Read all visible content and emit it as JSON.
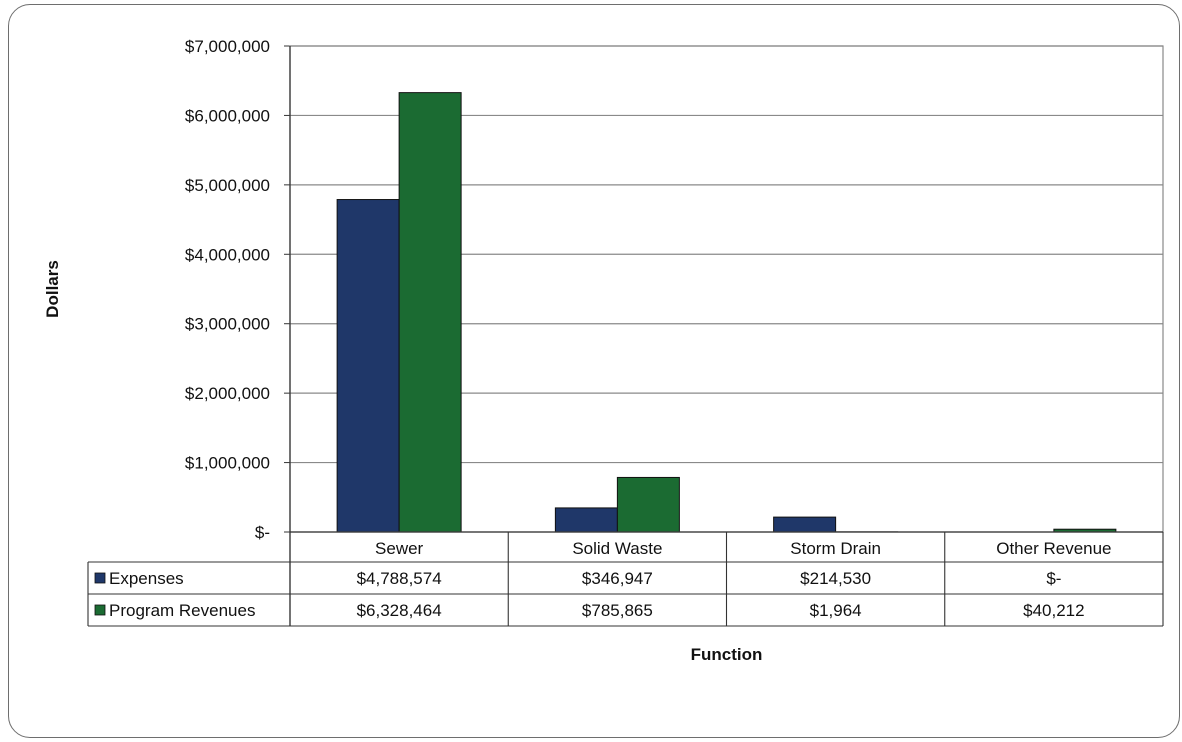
{
  "chart_data": {
    "type": "bar",
    "categories": [
      "Sewer",
      "Solid Waste",
      "Storm Drain",
      "Other Revenue"
    ],
    "series": [
      {
        "name": "Expenses",
        "color": "#1f3769",
        "values": [
          4788574,
          346947,
          214530,
          0
        ],
        "table_labels": [
          "$4,788,574",
          "$346,947",
          "$214,530",
          "$-"
        ]
      },
      {
        "name": "Program Revenues",
        "color": "#1b6b32",
        "values": [
          6328464,
          785865,
          1964,
          40212
        ],
        "table_labels": [
          "$6,328,464",
          "$785,865",
          "$1,964",
          "$40,212"
        ]
      }
    ],
    "ylim": [
      0,
      7000000
    ],
    "yticks": [
      0,
      1000000,
      2000000,
      3000000,
      4000000,
      5000000,
      6000000,
      7000000
    ],
    "ytick_labels": [
      "$-",
      "$1,000,000",
      "$2,000,000",
      "$3,000,000",
      "$4,000,000",
      "$5,000,000",
      "$6,000,000",
      "$7,000,000"
    ],
    "xlabel": "Function",
    "ylabel": "Dollars",
    "grid": true,
    "legend": "data table"
  }
}
